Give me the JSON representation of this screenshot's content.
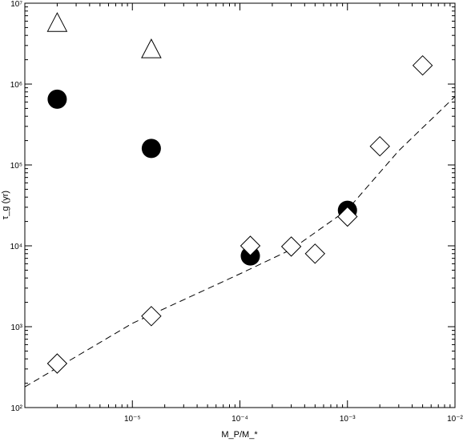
{
  "chart_data": {
    "type": "scatter",
    "title": "",
    "xlabel": "M_P/M_*",
    "ylabel": "τ_g (yr)",
    "xscale": "log",
    "yscale": "log",
    "xlim": [
      1e-06,
      0.01
    ],
    "ylim": [
      100,
      10000000
    ],
    "x_ticks": [
      {
        "value": 1e-05,
        "label": "10⁻⁵"
      },
      {
        "value": 0.0001,
        "label": "10⁻⁴"
      },
      {
        "value": 0.001,
        "label": "10⁻³"
      },
      {
        "value": 0.01,
        "label": "10⁻²"
      }
    ],
    "y_ticks": [
      {
        "value": 100,
        "label": "10²"
      },
      {
        "value": 1000,
        "label": "10³"
      },
      {
        "value": 10000,
        "label": "10⁴"
      },
      {
        "value": 100000,
        "label": "10⁵"
      },
      {
        "value": 1000000,
        "label": "10⁶"
      },
      {
        "value": 10000000,
        "label": "10⁷"
      }
    ],
    "grid": false,
    "series": [
      {
        "marker": "triangle-open",
        "color": "#000000",
        "points": [
          [
            2e-06,
            5500000
          ],
          [
            1.5e-05,
            2600000
          ]
        ]
      },
      {
        "marker": "circle-filled",
        "color": "#000000",
        "points": [
          [
            2e-06,
            650000
          ],
          [
            1.5e-05,
            160000
          ],
          [
            0.000125,
            7500
          ],
          [
            0.001,
            27500
          ]
        ]
      },
      {
        "marker": "diamond-open",
        "color": "#000000",
        "points": [
          [
            2e-06,
            350
          ],
          [
            1.5e-05,
            1350
          ],
          [
            0.000125,
            10000
          ],
          [
            0.0003,
            9800
          ],
          [
            0.0005,
            8000
          ],
          [
            0.001,
            23000
          ],
          [
            0.002,
            170000
          ],
          [
            0.005,
            1700000
          ]
        ]
      },
      {
        "line": "dashed",
        "color": "#000000",
        "points": [
          [
            1e-06,
            180
          ],
          [
            1e-05,
            1100
          ],
          [
            0.0001,
            4500
          ],
          [
            0.0003,
            9000
          ],
          [
            0.001,
            28000
          ],
          [
            0.003,
            150000
          ],
          [
            0.01,
            700000
          ]
        ]
      }
    ]
  }
}
